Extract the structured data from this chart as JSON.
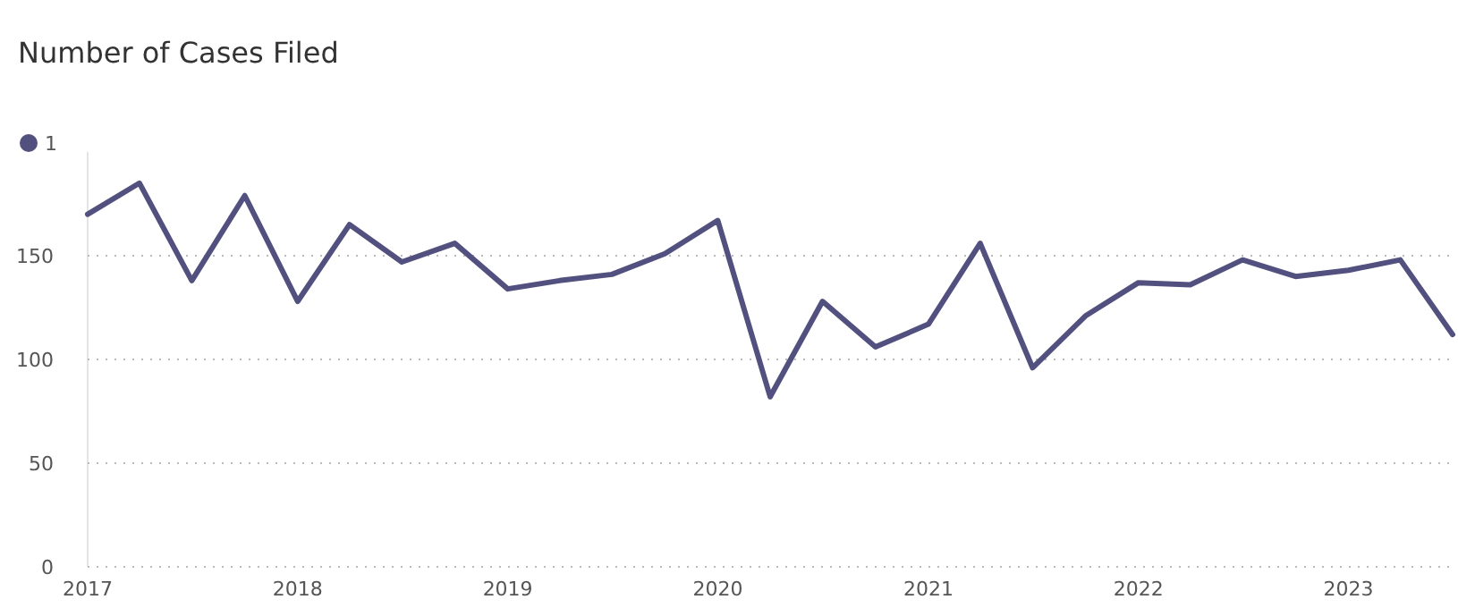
{
  "chart_data": {
    "type": "line",
    "title": "Number of Cases Filed",
    "x": [
      "2017-01",
      "2017-04",
      "2017-07",
      "2017-10",
      "2018-01",
      "2018-04",
      "2018-07",
      "2018-10",
      "2019-01",
      "2019-04",
      "2019-07",
      "2019-10",
      "2020-01",
      "2020-04",
      "2020-07",
      "2020-10",
      "2021-01",
      "2021-04",
      "2021-07",
      "2021-10",
      "2022-01",
      "2022-04",
      "2022-07",
      "2022-10",
      "2023-01",
      "2023-04",
      "2023-07"
    ],
    "series": [
      {
        "name": "1",
        "color": "#52507f",
        "values": [
          170,
          185,
          138,
          179,
          128,
          165,
          147,
          156,
          134,
          138,
          141,
          151,
          167,
          82,
          128,
          106,
          117,
          156,
          96,
          121,
          137,
          136,
          148,
          140,
          143,
          148,
          112
        ]
      }
    ],
    "xlim": [
      "2017-01",
      "2023-07"
    ],
    "xticks": [
      {
        "value": "2017-01",
        "label": "2017"
      },
      {
        "value": "2018-01",
        "label": "2018"
      },
      {
        "value": "2019-01",
        "label": "2019"
      },
      {
        "value": "2020-01",
        "label": "2020"
      },
      {
        "value": "2021-01",
        "label": "2021"
      },
      {
        "value": "2022-01",
        "label": "2022"
      },
      {
        "value": "2023-01",
        "label": "2023"
      }
    ],
    "ylim": [
      0,
      200
    ],
    "yticks": [
      0,
      50,
      100,
      150
    ],
    "grid": "y",
    "legend": "top left",
    "marker": "none",
    "line_style": "solid"
  }
}
